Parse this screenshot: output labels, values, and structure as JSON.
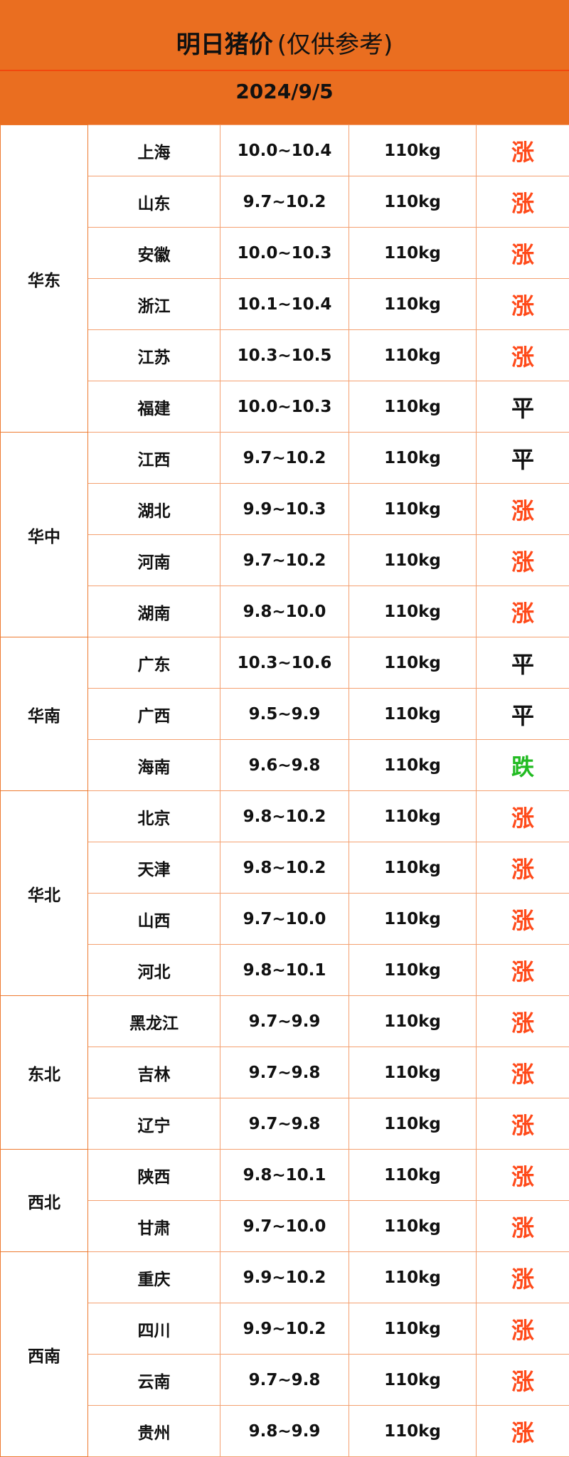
{
  "header": {
    "title": "明日猪价",
    "note": "(仅供参考)",
    "date": "2024/9/5"
  },
  "colors": {
    "header_bg": "#EA6E20",
    "rise": "#FF4A1A",
    "flat": "#111111",
    "fall": "#22BB22"
  },
  "regions": [
    {
      "name": "华东",
      "rows": [
        {
          "province": "上海",
          "price": "10.0~10.4",
          "weight": "110kg",
          "trend": "涨",
          "dir": "up"
        },
        {
          "province": "山东",
          "price": "9.7~10.2",
          "weight": "110kg",
          "trend": "涨",
          "dir": "up"
        },
        {
          "province": "安徽",
          "price": "10.0~10.3",
          "weight": "110kg",
          "trend": "涨",
          "dir": "up"
        },
        {
          "province": "浙江",
          "price": "10.1~10.4",
          "weight": "110kg",
          "trend": "涨",
          "dir": "up"
        },
        {
          "province": "江苏",
          "price": "10.3~10.5",
          "weight": "110kg",
          "trend": "涨",
          "dir": "up"
        },
        {
          "province": "福建",
          "price": "10.0~10.3",
          "weight": "110kg",
          "trend": "平",
          "dir": "flat"
        }
      ]
    },
    {
      "name": "华中",
      "rows": [
        {
          "province": "江西",
          "price": "9.7~10.2",
          "weight": "110kg",
          "trend": "平",
          "dir": "flat"
        },
        {
          "province": "湖北",
          "price": "9.9~10.3",
          "weight": "110kg",
          "trend": "涨",
          "dir": "up"
        },
        {
          "province": "河南",
          "price": "9.7~10.2",
          "weight": "110kg",
          "trend": "涨",
          "dir": "up"
        },
        {
          "province": "湖南",
          "price": "9.8~10.0",
          "weight": "110kg",
          "trend": "涨",
          "dir": "up"
        }
      ]
    },
    {
      "name": "华南",
      "rows": [
        {
          "province": "广东",
          "price": "10.3~10.6",
          "weight": "110kg",
          "trend": "平",
          "dir": "flat"
        },
        {
          "province": "广西",
          "price": "9.5~9.9",
          "weight": "110kg",
          "trend": "平",
          "dir": "flat"
        },
        {
          "province": "海南",
          "price": "9.6~9.8",
          "weight": "110kg",
          "trend": "跌",
          "dir": "down"
        }
      ]
    },
    {
      "name": "华北",
      "rows": [
        {
          "province": "北京",
          "price": "9.8~10.2",
          "weight": "110kg",
          "trend": "涨",
          "dir": "up"
        },
        {
          "province": "天津",
          "price": "9.8~10.2",
          "weight": "110kg",
          "trend": "涨",
          "dir": "up"
        },
        {
          "province": "山西",
          "price": "9.7~10.0",
          "weight": "110kg",
          "trend": "涨",
          "dir": "up"
        },
        {
          "province": "河北",
          "price": "9.8~10.1",
          "weight": "110kg",
          "trend": "涨",
          "dir": "up"
        }
      ]
    },
    {
      "name": "东北",
      "rows": [
        {
          "province": "黑龙江",
          "price": "9.7~9.9",
          "weight": "110kg",
          "trend": "涨",
          "dir": "up"
        },
        {
          "province": "吉林",
          "price": "9.7~9.8",
          "weight": "110kg",
          "trend": "涨",
          "dir": "up"
        },
        {
          "province": "辽宁",
          "price": "9.7~9.8",
          "weight": "110kg",
          "trend": "涨",
          "dir": "up"
        }
      ]
    },
    {
      "name": "西北",
      "rows": [
        {
          "province": "陕西",
          "price": "9.8~10.1",
          "weight": "110kg",
          "trend": "涨",
          "dir": "up"
        },
        {
          "province": "甘肃",
          "price": "9.7~10.0",
          "weight": "110kg",
          "trend": "涨",
          "dir": "up"
        }
      ]
    },
    {
      "name": "西南",
      "rows": [
        {
          "province": "重庆",
          "price": "9.9~10.2",
          "weight": "110kg",
          "trend": "涨",
          "dir": "up"
        },
        {
          "province": "四川",
          "price": "9.9~10.2",
          "weight": "110kg",
          "trend": "涨",
          "dir": "up"
        },
        {
          "province": "云南",
          "price": "9.7~9.8",
          "weight": "110kg",
          "trend": "涨",
          "dir": "up"
        },
        {
          "province": "贵州",
          "price": "9.8~9.9",
          "weight": "110kg",
          "trend": "涨",
          "dir": "up"
        }
      ]
    }
  ]
}
